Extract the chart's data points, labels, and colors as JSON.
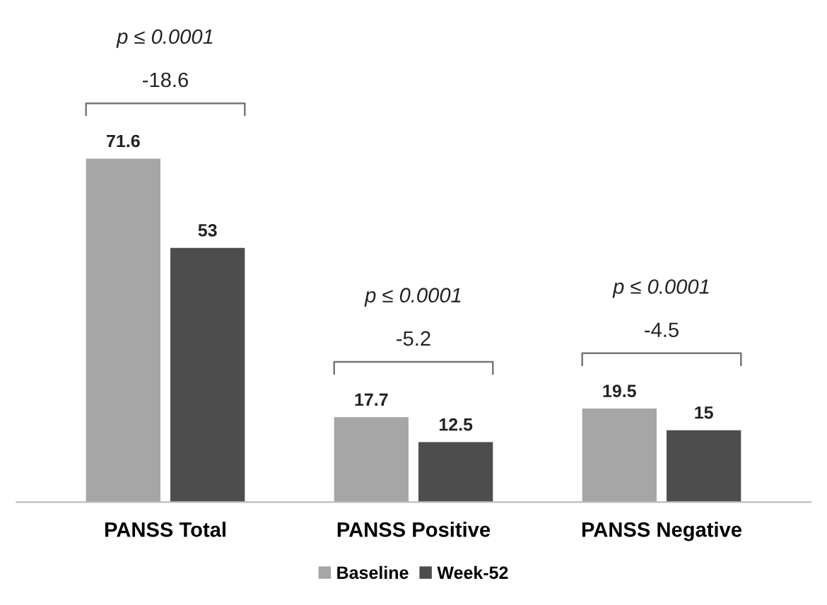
{
  "chart_data": {
    "type": "bar",
    "categories": [
      "PANSS Total",
      "PANSS Positive",
      "PANSS Negative"
    ],
    "series": [
      {
        "name": "Baseline",
        "color": "#a6a6a6",
        "values": [
          71.6,
          17.7,
          19.5
        ]
      },
      {
        "name": "Week-52",
        "color": "#4d4d4d",
        "values": [
          53,
          12.5,
          15
        ]
      }
    ],
    "tick_labels": "x",
    "data_labels": true,
    "grid": false,
    "legend": "bottom",
    "annotations": [
      "p ≤ 0.0001",
      "-18.6",
      "p ≤ 0.0001",
      "-5.2",
      "p ≤ 0.0001",
      "-4.5"
    ]
  }
}
